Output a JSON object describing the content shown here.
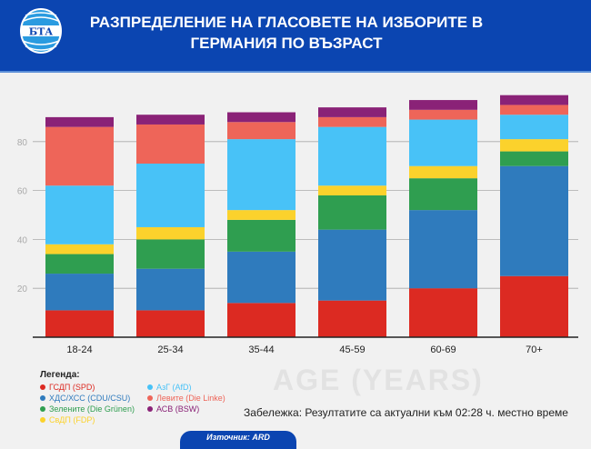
{
  "header": {
    "title": "РАЗПРЕДЕЛЕНИЕ НА ГЛАСОВЕТЕ НА ИЗБОРИТЕ В ГЕРМАНИЯ ПО ВЪЗРАСТ",
    "logo_text": "БТА"
  },
  "watermark": "AGE (YEARS)",
  "chart_data": {
    "type": "bar",
    "stacked": true,
    "categories": [
      "18-24",
      "25-34",
      "35-44",
      "45-59",
      "60-69",
      "70+"
    ],
    "yticks": [
      20,
      40,
      60,
      80
    ],
    "ylim": [
      0,
      100
    ],
    "grid": true,
    "series": [
      {
        "name": "ГСДП (SPD)",
        "color": "#dc2a22",
        "values": [
          11,
          11,
          14,
          15,
          20,
          25
        ]
      },
      {
        "name": "ХДС/ХСС (CDU/CSU)",
        "color": "#2f7bbd",
        "values": [
          15,
          17,
          21,
          29,
          32,
          45
        ]
      },
      {
        "name": "Зелените (Die Grünen)",
        "color": "#2f9e50",
        "values": [
          8,
          12,
          13,
          14,
          13,
          6
        ]
      },
      {
        "name": "СвДП (FDP)",
        "color": "#fbd22c",
        "values": [
          4,
          5,
          4,
          4,
          5,
          5
        ]
      },
      {
        "name": "АзГ (AfD)",
        "color": "#48c2f7",
        "values": [
          24,
          26,
          29,
          24,
          19,
          10
        ]
      },
      {
        "name": "Левите (Die Linke)",
        "color": "#ee6559",
        "values": [
          24,
          16,
          7,
          4,
          4,
          4
        ]
      },
      {
        "name": "АСВ (BSW)",
        "color": "#8a2277",
        "values": [
          4,
          4,
          4,
          4,
          4,
          4
        ]
      }
    ]
  },
  "legend": {
    "title": "Легенда:"
  },
  "note": "Забележка: Резултатите са актуални към 02:28 ч. местно време",
  "source": "Източник: ARD"
}
